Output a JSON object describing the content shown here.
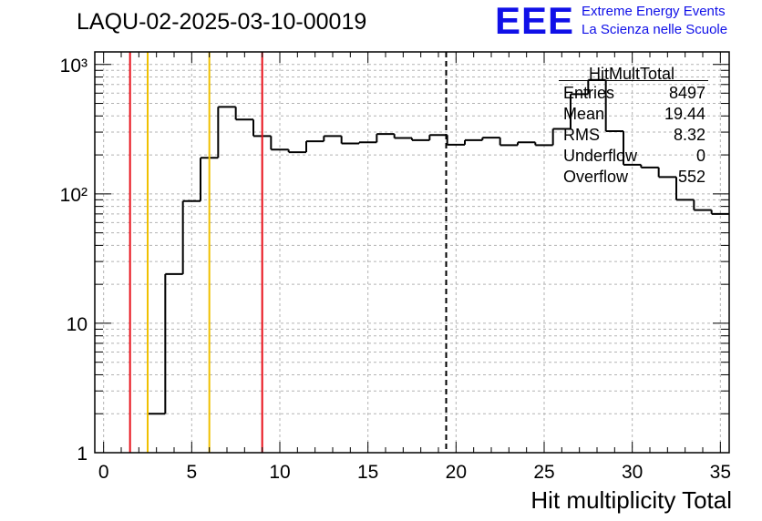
{
  "page_title": "LAQU-02-2025-03-10-00019",
  "logo": {
    "mark": "EEE",
    "line1": "Extreme Energy Events",
    "line2": "La Scienza nelle Scuole",
    "color": "#1010e8"
  },
  "stats": {
    "title": "HitMultTotal",
    "rows": [
      {
        "label": "Entries",
        "value": "8497"
      },
      {
        "label": "Mean",
        "value": "19.44"
      },
      {
        "label": "RMS",
        "value": "8.32"
      },
      {
        "label": "Underflow",
        "value": "0"
      },
      {
        "label": "Overflow",
        "value": "552"
      }
    ]
  },
  "chart_data": {
    "type": "histogram",
    "title": "LAQU-02-2025-03-10-00019",
    "xlabel": "Hit multiplicity Total",
    "ylabel": "",
    "xlim": [
      -0.5,
      35.5
    ],
    "ylim": [
      1,
      1250
    ],
    "y_scale": "log",
    "grid": true,
    "bin_edges_start": 0.5,
    "bin_width": 1,
    "counts": [
      0,
      0,
      2,
      24,
      88,
      190,
      470,
      375,
      280,
      220,
      210,
      255,
      280,
      245,
      250,
      290,
      270,
      260,
      285,
      240,
      260,
      272,
      238,
      250,
      238,
      318,
      590,
      760,
      305,
      168,
      160,
      135,
      90,
      75,
      70
    ],
    "x_ticks": [
      0,
      5,
      10,
      15,
      20,
      25,
      30,
      35
    ],
    "x_tick_labels": [
      "0",
      "5",
      "10",
      "15",
      "20",
      "25",
      "30",
      "35"
    ],
    "y_ticks": [
      1,
      10,
      100,
      1000
    ],
    "y_tick_labels": [
      "1",
      "10",
      "10²",
      "10³"
    ],
    "vertical_lines": [
      {
        "x": 1.5,
        "color": "#e8101a",
        "style": "solid"
      },
      {
        "x": 2.5,
        "color": "#f0c000",
        "style": "solid"
      },
      {
        "x": 6.0,
        "color": "#f0c000",
        "style": "solid"
      },
      {
        "x": 9.0,
        "color": "#e8101a",
        "style": "solid"
      },
      {
        "x": 19.44,
        "color": "#000000",
        "style": "dashed"
      }
    ],
    "legend": "top-right"
  }
}
